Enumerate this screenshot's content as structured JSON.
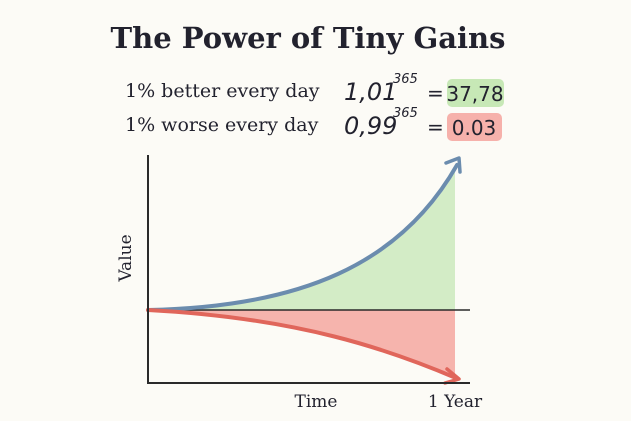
{
  "title": "The Power of Tiny Gains",
  "rows": [
    {
      "label": "1% better every day",
      "base": "1,01",
      "exponent": "365",
      "equals": "=",
      "result": "37,78"
    },
    {
      "label": "1% worse every day",
      "base": "0,99",
      "exponent": "365",
      "equals": "=",
      "result": "0.03"
    }
  ],
  "graph": {
    "y_label": "Value",
    "x_label": "Time",
    "end_label": "1 Year"
  }
}
